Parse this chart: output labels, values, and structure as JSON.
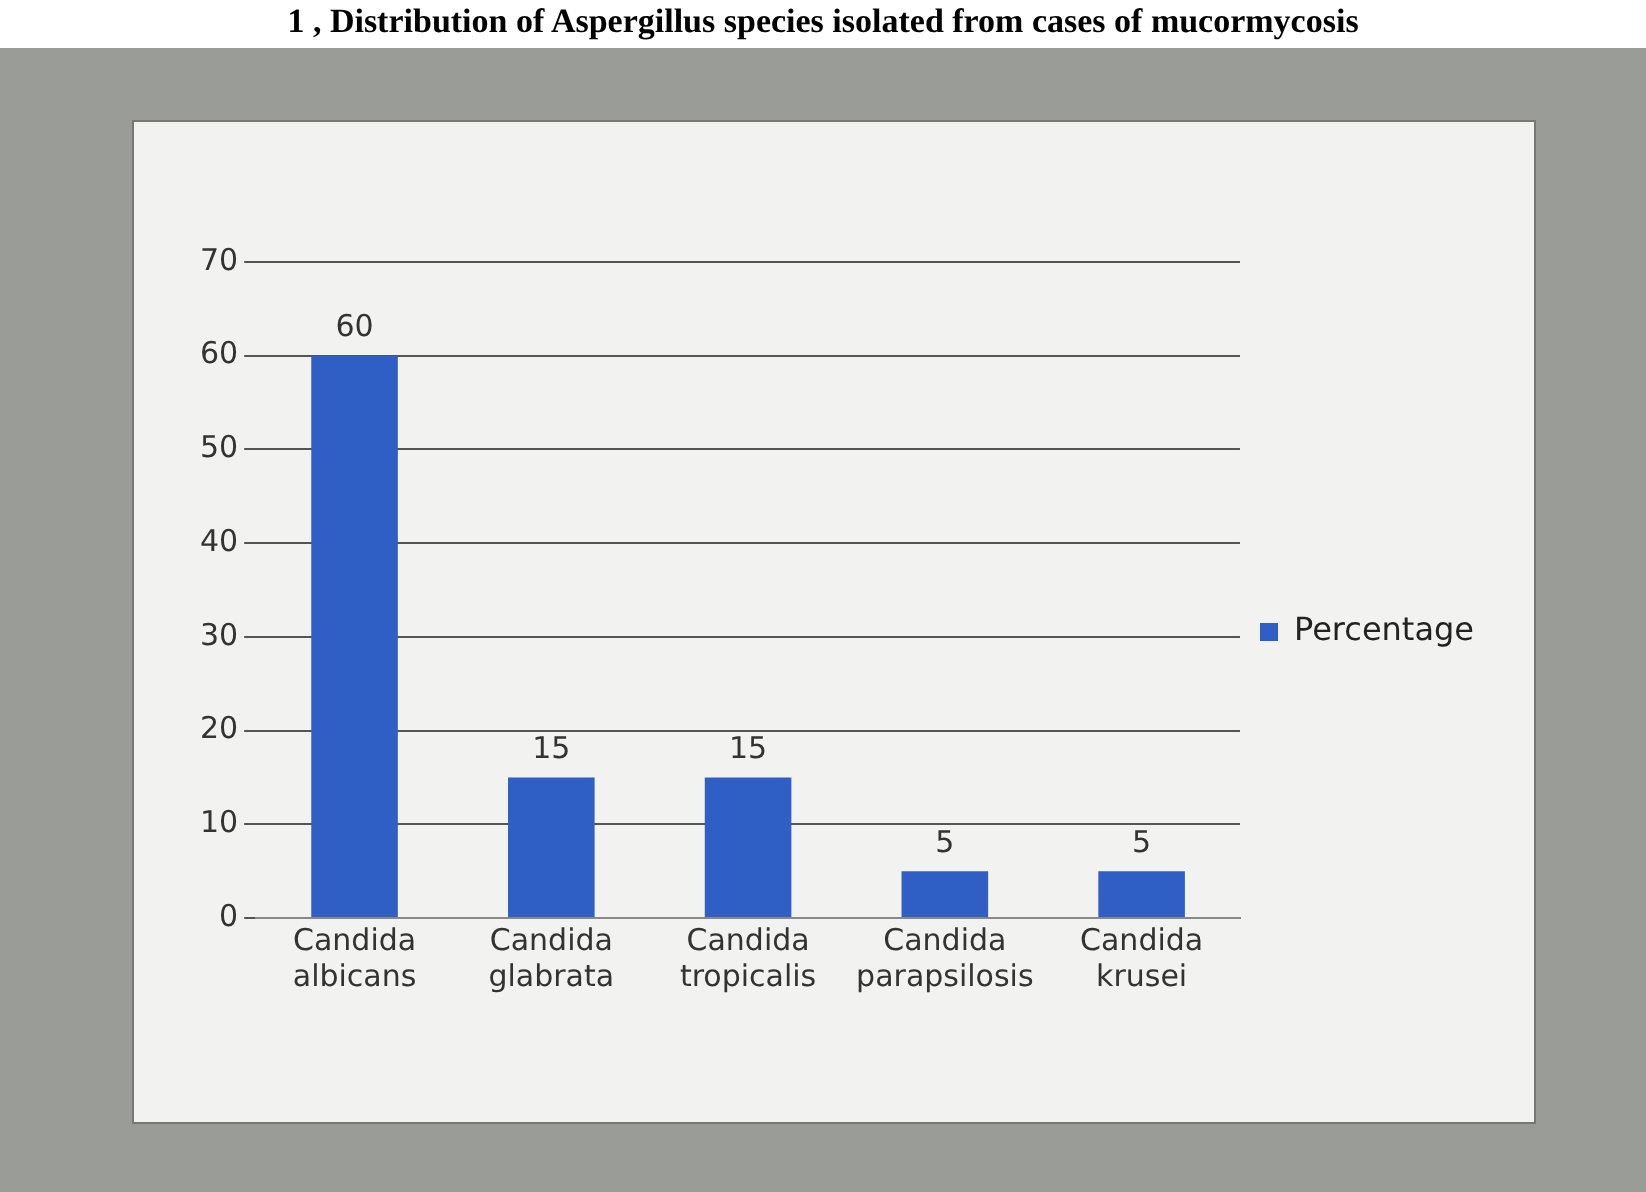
{
  "chart_data": {
    "type": "bar",
    "title": "1 , Distribution of Aspergillus species isolated from cases of mucormycosis",
    "categories": [
      "Candida albicans",
      "Candida glabrata",
      "Candida tropicalis",
      "Candida parapsilosis",
      "Candida krusei"
    ],
    "series": [
      {
        "name": "Percentage",
        "color": "#2f5fc4",
        "values": [
          60,
          15,
          15,
          5,
          5
        ]
      }
    ],
    "ylim": [
      0,
      70
    ],
    "yticks": [
      0,
      10,
      20,
      30,
      40,
      50,
      60,
      70
    ],
    "grid": "y",
    "legend": "right",
    "data_labels": true
  }
}
